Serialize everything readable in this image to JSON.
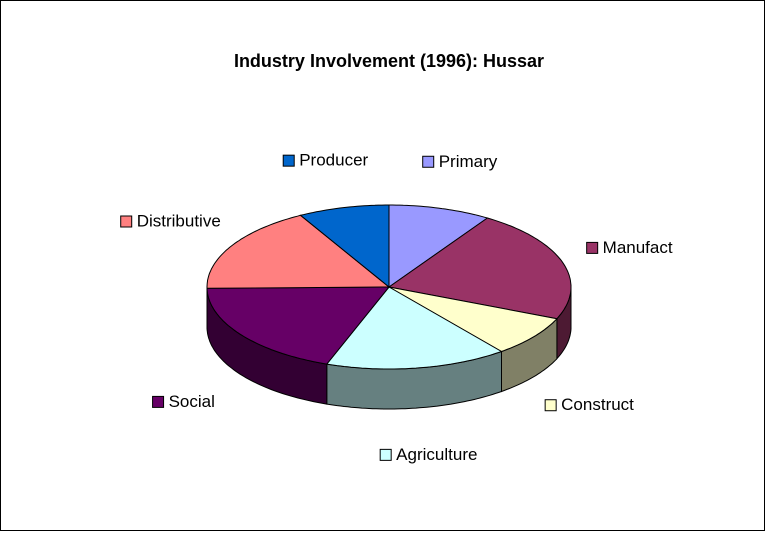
{
  "chart_data": {
    "type": "pie",
    "title": "Industry Involvement (1996): Hussar",
    "categories": [
      "Primary",
      "Manufact",
      "Construct",
      "Agriculture",
      "Social",
      "Distributive",
      "Producer"
    ],
    "values": [
      9,
      22,
      8,
      16,
      19,
      17,
      8
    ],
    "colors": [
      "#9999ff",
      "#993366",
      "#ffffcc",
      "#ccffff",
      "#660066",
      "#ff8080",
      "#0066cc"
    ]
  }
}
